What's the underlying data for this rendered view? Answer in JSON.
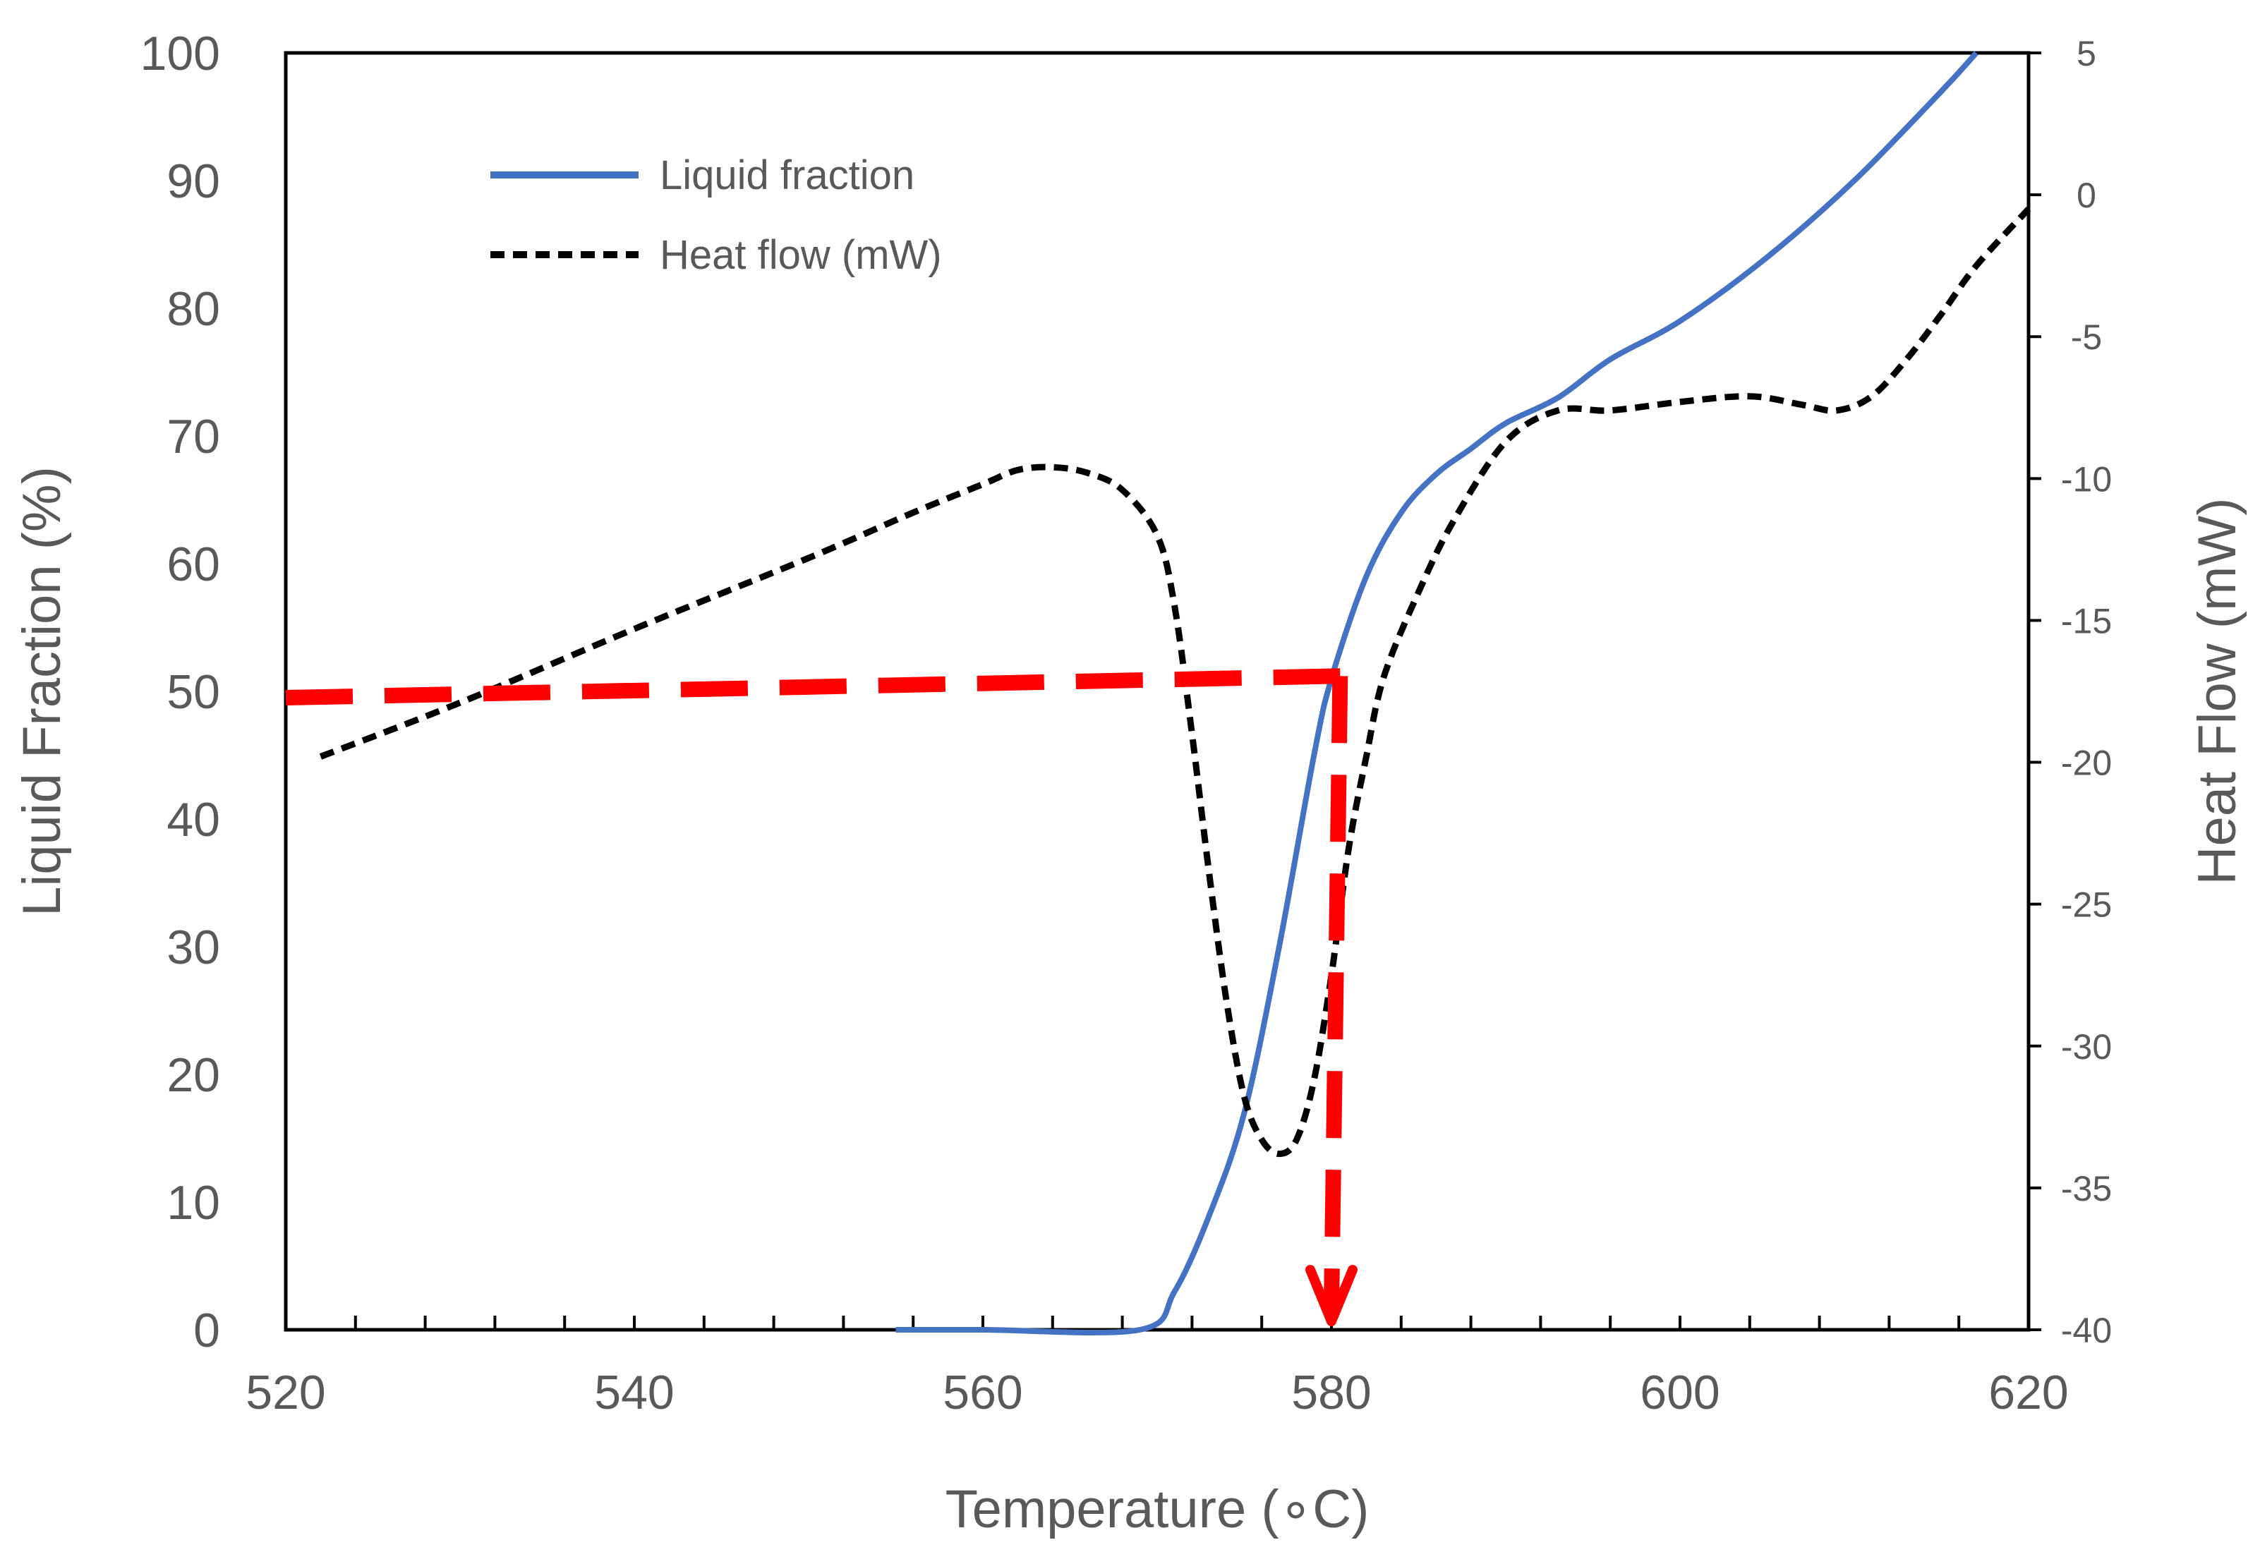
{
  "chart_data": {
    "type": "line",
    "title": "",
    "xlabel": "Temperature (∘C)",
    "ylabel": "Liquid Fraction (%)",
    "y2label": "Heat Flow (mW)",
    "xlim": [
      520,
      620
    ],
    "ylim": [
      0,
      100
    ],
    "y2lim": [
      -40,
      5
    ],
    "x_ticks": [
      520,
      540,
      560,
      580,
      600,
      620
    ],
    "y_ticks": [
      0,
      10,
      20,
      30,
      40,
      50,
      60,
      70,
      80,
      90,
      100
    ],
    "y2_ticks": [
      -40,
      -35,
      -30,
      -25,
      -20,
      -15,
      -10,
      -5,
      0,
      5
    ],
    "legend_position": "top-left",
    "grid": false,
    "series": [
      {
        "name": "Liquid fraction",
        "axis": "left",
        "color": "#4472C4",
        "style": "solid",
        "x": [
          555,
          560,
          569,
          571,
          573,
          575,
          577,
          579,
          580,
          582,
          584,
          586,
          588,
          590,
          593,
          596,
          600,
          605,
          610,
          615,
          617
        ],
        "y": [
          0,
          0,
          0,
          3,
          9,
          17,
          30,
          45,
          51,
          59,
          64,
          67,
          69,
          71,
          73,
          76,
          79,
          84,
          90,
          97,
          100
        ]
      },
      {
        "name": "Heat flow (mW)",
        "axis": "right",
        "color": "#000000",
        "style": "dashed",
        "x": [
          522,
          530,
          540,
          550,
          556,
          560,
          562,
          564,
          566,
          568,
          570,
          571,
          572,
          573,
          574,
          575,
          576,
          577,
          578,
          579,
          580,
          581,
          582,
          583,
          585,
          587,
          590,
          593,
          596,
          600,
          604,
          607,
          609,
          611,
          613,
          615,
          617,
          620
        ],
        "y": [
          -19.8,
          -17.9,
          -15.3,
          -12.8,
          -11.2,
          -10.2,
          -9.7,
          -9.6,
          -9.8,
          -10.4,
          -12.0,
          -14.5,
          -19.0,
          -24.0,
          -28.5,
          -31.8,
          -33.3,
          -33.8,
          -33.3,
          -31.2,
          -27.5,
          -23.0,
          -19.8,
          -17.0,
          -14.0,
          -11.5,
          -8.7,
          -7.6,
          -7.6,
          -7.3,
          -7.1,
          -7.4,
          -7.6,
          -7.1,
          -5.8,
          -4.2,
          -2.5,
          -0.5
        ]
      }
    ],
    "annotation": {
      "name": "50% liquid marker",
      "color": "#FF0000",
      "style": "dashed-arrow",
      "from_x": 520,
      "from_y": 49.5,
      "corner_x": 580.5,
      "corner_y": 51.2,
      "to_x": 580,
      "to_y": 0
    }
  }
}
